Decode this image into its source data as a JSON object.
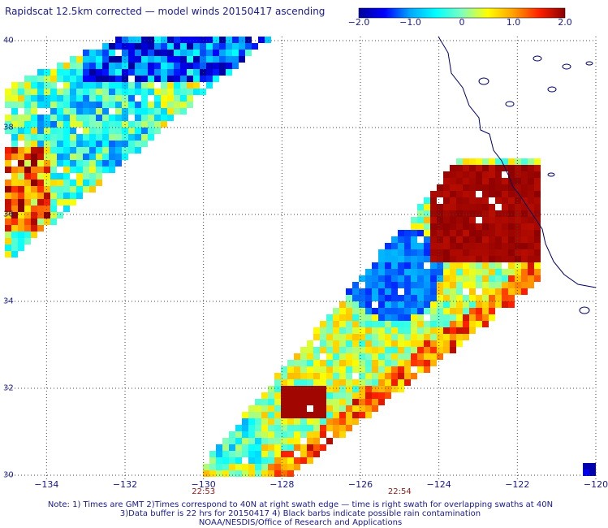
{
  "title": "Rapidscat 12.5km corrected — model winds 20150417 ascending",
  "colorbar": {
    "ticks": [
      "−2.0",
      "−1.0",
      "0",
      "1.0",
      "2.0"
    ],
    "tick_values": [
      -2.0,
      -1.0,
      0,
      1.0,
      2.0
    ],
    "range": [
      -2.0,
      2.0
    ],
    "colors": [
      "#00009b",
      "#0000ff",
      "#00a8ff",
      "#00ffff",
      "#7fffbf",
      "#ffff00",
      "#ffa000",
      "#ff2000",
      "#8b0000"
    ]
  },
  "axes": {
    "lon_ticks": [
      "−134",
      "−132",
      "−130",
      "−128",
      "−126",
      "−124",
      "−122",
      "−120"
    ],
    "lon_values": [
      -134,
      -132,
      -130,
      -128,
      -126,
      -124,
      -122,
      -120
    ],
    "lat_ticks": [
      "40",
      "38",
      "36",
      "34",
      "32",
      "30"
    ],
    "lat_values": [
      40,
      38,
      36,
      34,
      32,
      30
    ],
    "lon_range": [
      -135,
      -120
    ],
    "lat_range": [
      30,
      40
    ]
  },
  "swath_times": [
    {
      "label": "22:53",
      "lon": -130
    },
    {
      "label": "22:54",
      "lon": -125
    }
  ],
  "notes": [
    "Note: 1) Times are GMT 2)Times correspond to 40N at right swath edge — time is right swath for overlapping swaths at 40N",
    "3)Data buffer is 22 hrs for 20150417 4) Black barbs indicate possible rain contamination",
    "NOAA/NESDIS/Office of Research and Applications"
  ],
  "colors": {
    "text": "#1a1a8c",
    "time_text": "#8b1a1a",
    "grid": "#444444",
    "coast": "#000066"
  }
}
